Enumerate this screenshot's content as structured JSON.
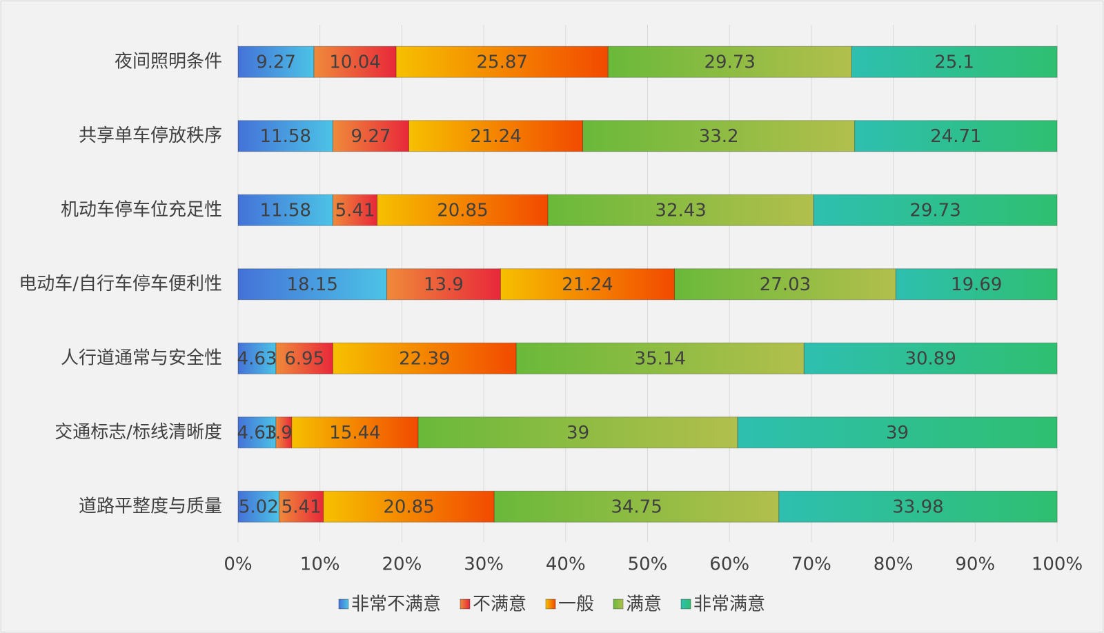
{
  "chart_data": {
    "type": "stacked-bar-horizontal",
    "categories": [
      "夜间照明条件",
      "共享单车停放秩序",
      "机动车停车位充足性",
      "电动车/自行车停车便利性",
      "人行道通常与安全性",
      "交通标志/标线清晰度",
      "道路平整度与质量"
    ],
    "series": [
      {
        "name": "非常不满意",
        "color": [
          "#4472d8",
          "#4cc3e6"
        ],
        "values": [
          9.27,
          11.58,
          11.58,
          18.15,
          4.63,
          4.63,
          5.02
        ]
      },
      {
        "name": "不满意",
        "color": [
          "#ef8a3a",
          "#e8283a"
        ],
        "values": [
          10.04,
          9.27,
          5.41,
          13.9,
          6.95,
          1.93,
          5.41
        ]
      },
      {
        "name": "一般",
        "color": [
          "#f6c000",
          "#f24a00"
        ],
        "values": [
          25.87,
          21.24,
          20.85,
          21.24,
          22.39,
          15.44,
          20.85
        ]
      },
      {
        "name": "满意",
        "color": [
          "#6ab93a",
          "#b2bf4c"
        ],
        "values": [
          29.73,
          33.2,
          32.43,
          27.03,
          35.14,
          39,
          34.75
        ]
      },
      {
        "name": "非常满意",
        "color": [
          "#2ebfb0",
          "#2fbf70"
        ],
        "values": [
          25.1,
          24.71,
          29.73,
          19.69,
          30.89,
          39,
          33.98
        ]
      }
    ],
    "xlim": [
      0,
      100
    ],
    "xticks": [
      {
        "value": 0,
        "label": "0%"
      },
      {
        "value": 10,
        "label": "10%"
      },
      {
        "value": 20,
        "label": "20%"
      },
      {
        "value": 30,
        "label": "30%"
      },
      {
        "value": 40,
        "label": "40%"
      },
      {
        "value": 50,
        "label": "50%"
      },
      {
        "value": 60,
        "label": "60%"
      },
      {
        "value": 70,
        "label": "70%"
      },
      {
        "value": 80,
        "label": "80%"
      },
      {
        "value": 90,
        "label": "90%"
      },
      {
        "value": 100,
        "label": "100%"
      }
    ],
    "grid": true,
    "legend": "bottom"
  }
}
